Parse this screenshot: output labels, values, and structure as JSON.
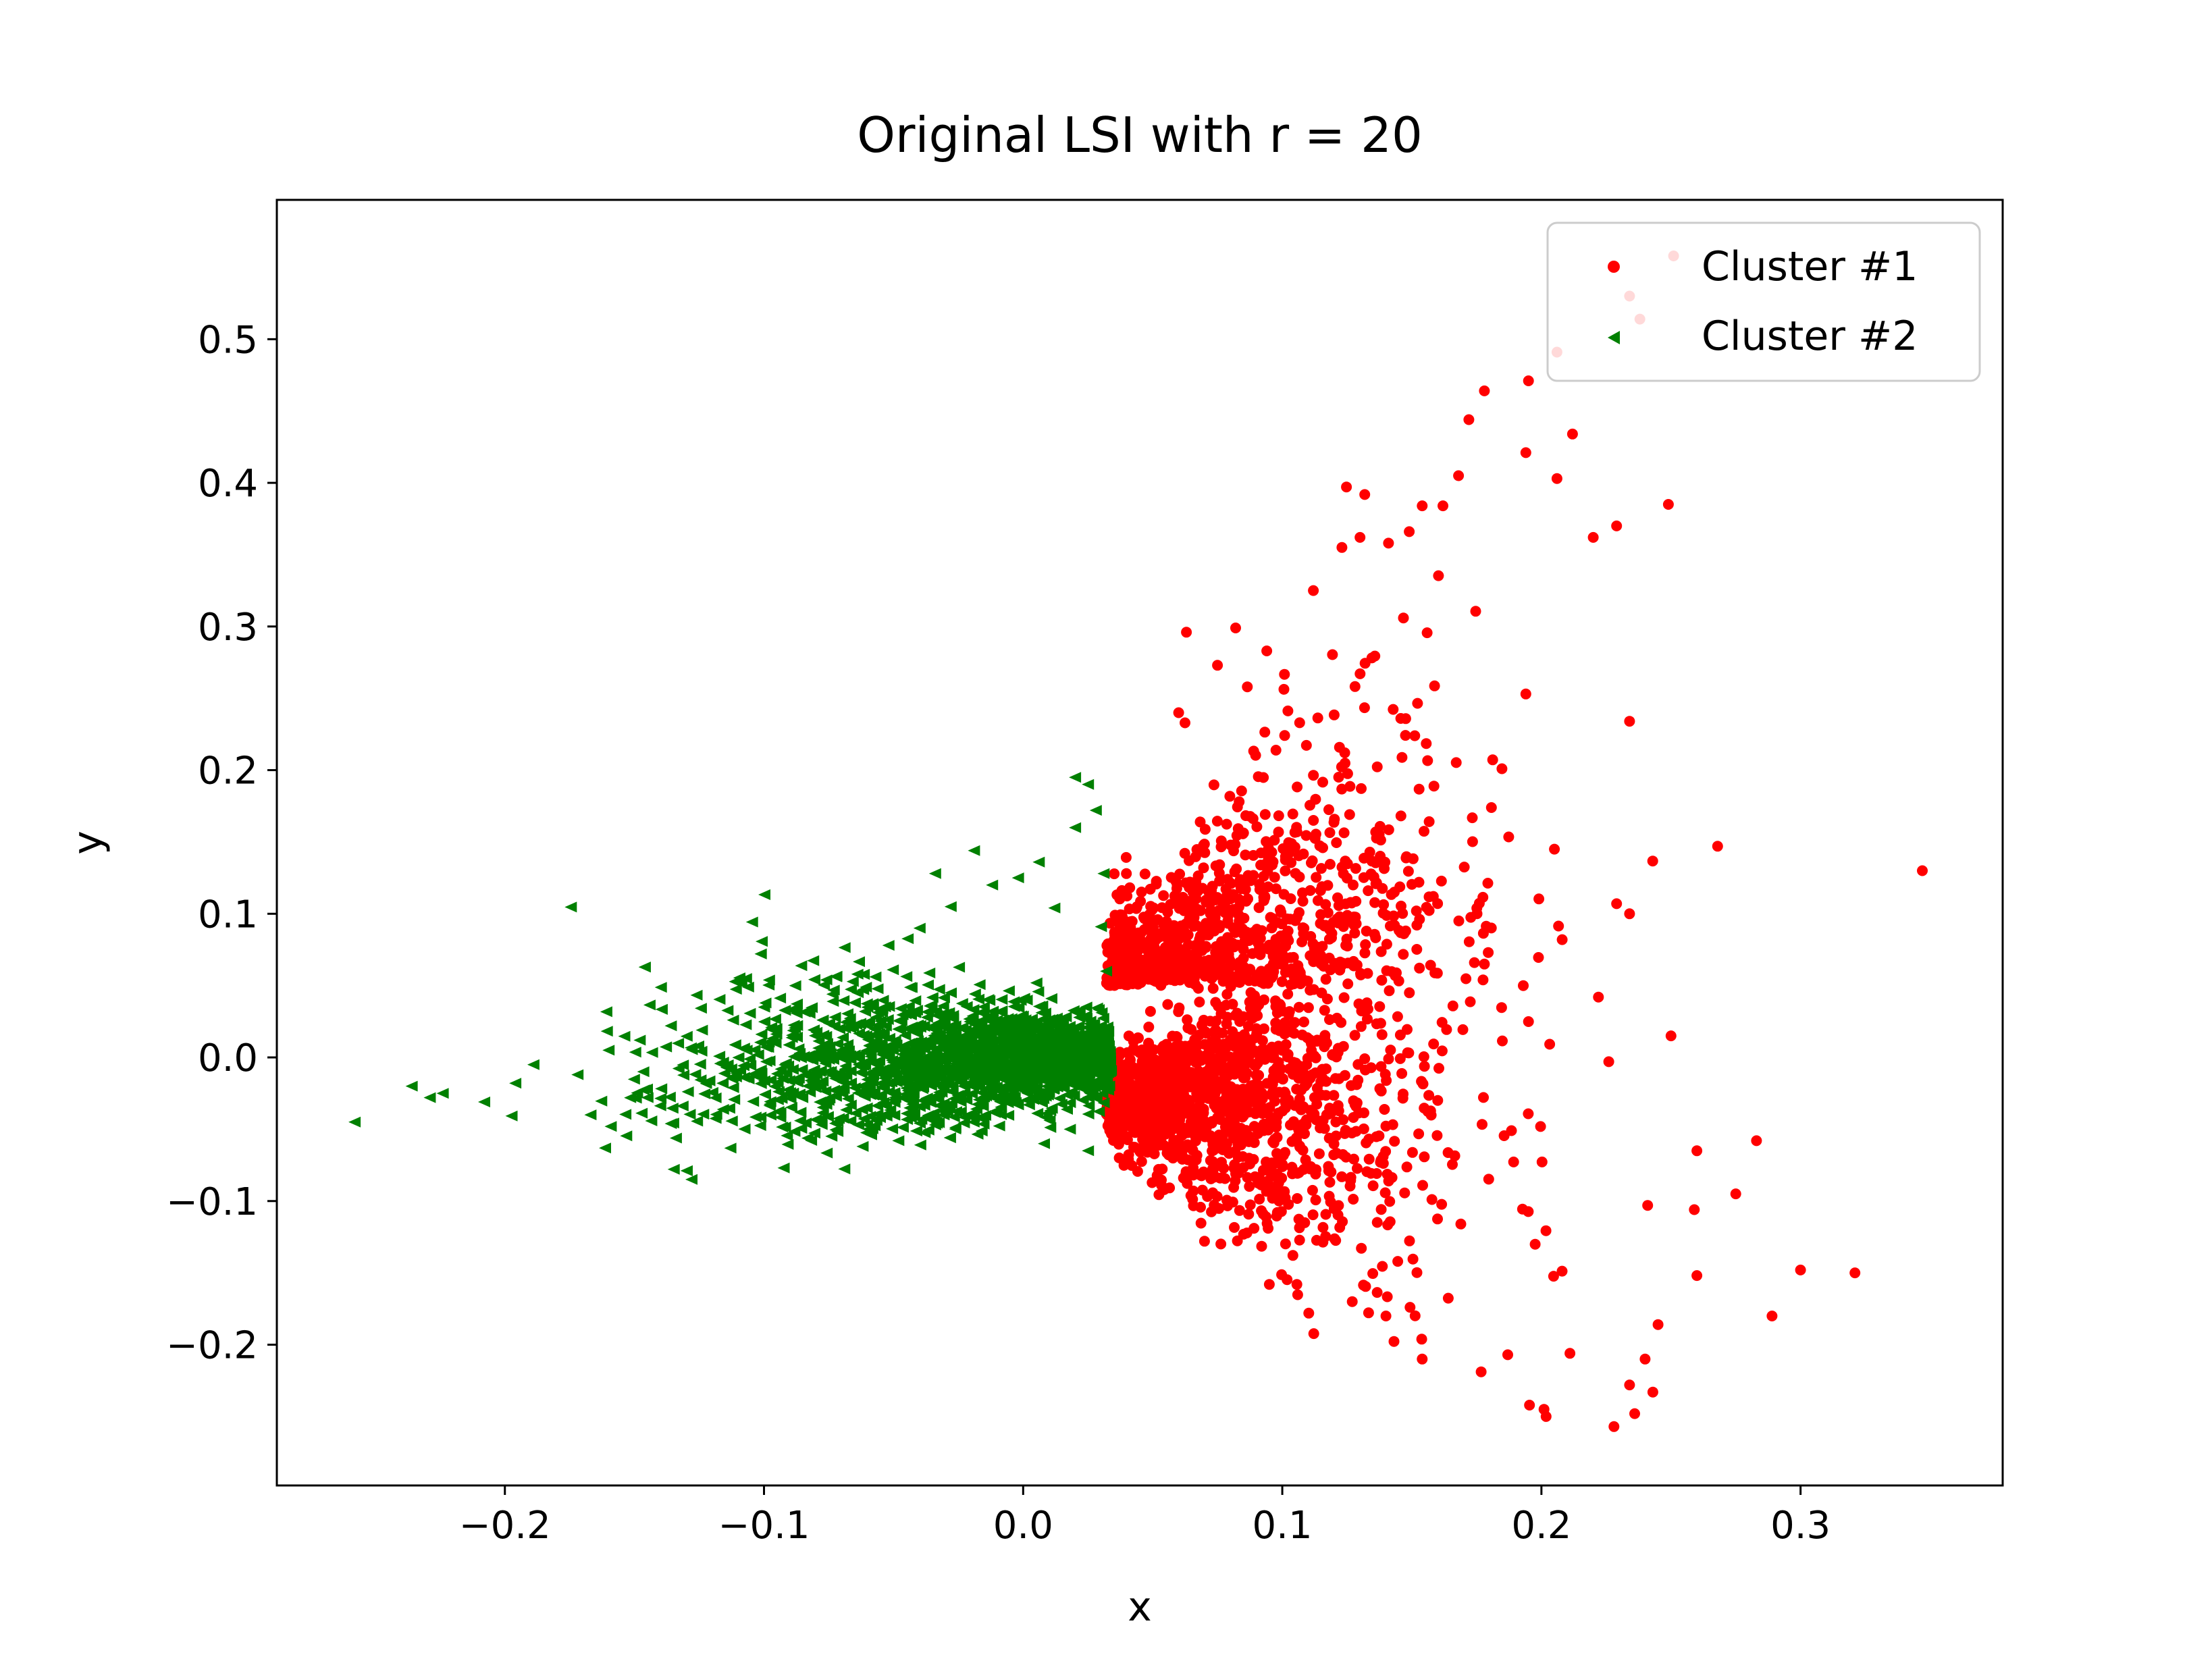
{
  "chart_data": {
    "type": "scatter",
    "title": "Original LSI with r = 20",
    "xlabel": "x",
    "ylabel": "y",
    "xlim": [
      -0.288,
      0.378
    ],
    "ylim": [
      -0.298,
      0.597
    ],
    "xticks": [
      -0.2,
      -0.1,
      0.0,
      0.1,
      0.2,
      0.3
    ],
    "xtick_labels": [
      "−0.2",
      "−0.1",
      "0.0",
      "0.1",
      "0.2",
      "0.3"
    ],
    "yticks": [
      -0.2,
      -0.1,
      0.0,
      0.1,
      0.2,
      0.3,
      0.4,
      0.5
    ],
    "ytick_labels": [
      "−0.2",
      "−0.1",
      "0.0",
      "0.1",
      "0.2",
      "0.3",
      "0.4",
      "0.5"
    ],
    "grid": false,
    "legend_position": "top-right",
    "series": [
      {
        "name": "Cluster #1",
        "color": "#ff0000",
        "marker": "circle",
        "points": [
          [
            0.347,
            0.13
          ],
          [
            0.321,
            -0.15
          ],
          [
            0.3,
            -0.148
          ],
          [
            0.289,
            -0.18
          ],
          [
            0.283,
            -0.058
          ],
          [
            0.275,
            -0.095
          ],
          [
            0.268,
            0.147
          ],
          [
            0.26,
            -0.065
          ],
          [
            0.259,
            -0.106
          ],
          [
            0.251,
            0.558
          ],
          [
            0.25,
            0.015
          ],
          [
            0.249,
            0.385
          ],
          [
            0.238,
            0.514
          ],
          [
            0.234,
            0.53
          ],
          [
            0.234,
            0.234
          ],
          [
            0.234,
            0.1
          ],
          [
            0.229,
            0.37
          ],
          [
            0.229,
            0.107
          ],
          [
            0.228,
            -0.257
          ],
          [
            0.234,
            -0.228
          ],
          [
            0.236,
            -0.248
          ],
          [
            0.24,
            -0.21
          ],
          [
            0.243,
            -0.233
          ],
          [
            0.241,
            -0.103
          ],
          [
            0.245,
            -0.186
          ],
          [
            0.226,
            -0.003
          ],
          [
            0.222,
            0.042
          ],
          [
            0.22,
            0.362
          ],
          [
            0.212,
            0.434
          ],
          [
            0.211,
            -0.206
          ],
          [
            0.206,
            0.491
          ],
          [
            0.206,
            0.403
          ],
          [
            0.201,
            -0.245
          ],
          [
            0.195,
            0.471
          ],
          [
            0.194,
            0.421
          ],
          [
            0.194,
            0.253
          ],
          [
            0.193,
            0.05
          ],
          [
            0.205,
            0.145
          ],
          [
            0.208,
            0.082
          ],
          [
            0.178,
            0.464
          ],
          [
            0.172,
            0.444
          ],
          [
            0.168,
            0.405
          ],
          [
            0.162,
            0.384
          ],
          [
            0.154,
            0.384
          ],
          [
            0.149,
            0.366
          ],
          [
            0.141,
            0.358
          ],
          [
            0.13,
            0.362
          ],
          [
            0.123,
            0.355
          ],
          [
            0.112,
            0.325
          ],
          [
            0.094,
            0.283
          ],
          [
            0.082,
            0.299
          ],
          [
            0.075,
            0.273
          ],
          [
            0.063,
            0.296
          ],
          [
            0.06,
            0.24
          ],
          [
            0.154,
            -0.21
          ],
          [
            0.187,
            -0.207
          ],
          [
            0.14,
            -0.18
          ],
          [
            0.127,
            -0.17
          ],
          [
            0.095,
            -0.158
          ],
          [
            0.07,
            -0.128
          ]
        ]
      },
      {
        "name": "Cluster #2",
        "color": "#008000",
        "marker": "triangle-left",
        "points": [
          [
            -0.258,
            -0.045
          ],
          [
            -0.236,
            -0.02
          ],
          [
            -0.229,
            -0.028
          ],
          [
            -0.224,
            -0.025
          ],
          [
            -0.208,
            -0.031
          ],
          [
            -0.196,
            -0.018
          ],
          [
            -0.189,
            -0.005
          ],
          [
            -0.172,
            -0.012
          ],
          [
            -0.16,
            0.005
          ],
          [
            -0.148,
            0.012
          ],
          [
            -0.136,
            0.022
          ],
          [
            -0.124,
            0.019
          ],
          [
            -0.112,
            0.026
          ],
          [
            -0.1,
            0.035
          ],
          [
            -0.088,
            0.05
          ],
          [
            -0.076,
            0.054
          ],
          [
            -0.064,
            0.058
          ],
          [
            -0.062,
            -0.062
          ],
          [
            -0.052,
            0.078
          ],
          [
            -0.04,
            0.09
          ],
          [
            -0.034,
            0.128
          ],
          [
            -0.028,
            0.105
          ],
          [
            -0.019,
            0.144
          ],
          [
            -0.012,
            0.12
          ],
          [
            -0.002,
            0.125
          ],
          [
            0.006,
            0.136
          ],
          [
            0.012,
            0.104
          ],
          [
            0.02,
            0.16
          ],
          [
            0.02,
            0.195
          ],
          [
            0.025,
            0.19
          ],
          [
            0.028,
            0.172
          ],
          [
            0.031,
            0.128
          ],
          [
            0.03,
            0.091
          ],
          [
            0.032,
            0.06
          ],
          [
            -0.034,
            -0.047
          ],
          [
            -0.02,
            -0.04
          ],
          [
            0.008,
            -0.06
          ],
          [
            0.018,
            -0.05
          ],
          [
            0.025,
            -0.065
          ],
          [
            -0.106,
            -0.015
          ],
          [
            -0.167,
            -0.04
          ],
          [
            -0.145,
            -0.028
          ]
        ]
      }
    ]
  }
}
